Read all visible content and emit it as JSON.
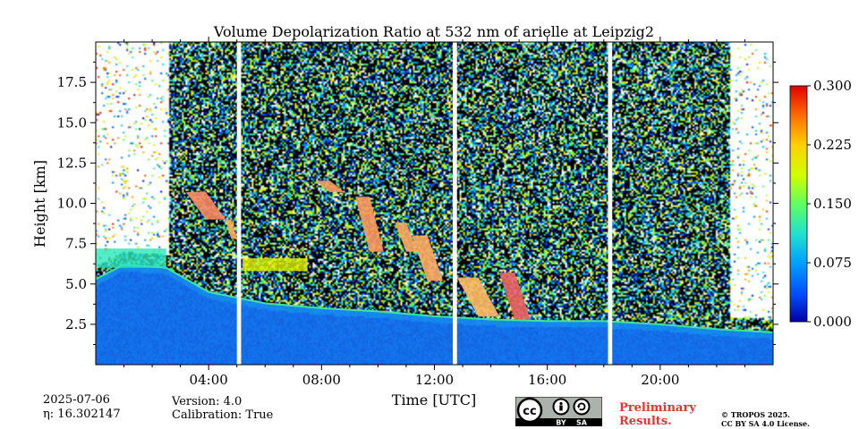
{
  "chart_data": {
    "type": "heatmap",
    "title": "Volume Depolarization Ratio at 532 nm of arielle at Leipzig2",
    "xlabel": "Time [UTC]",
    "ylabel": "Height [km]",
    "xlim_hours": [
      0,
      24
    ],
    "ylim_km": [
      0,
      20
    ],
    "x_ticks": [
      {
        "hour": 4,
        "label": "04:00"
      },
      {
        "hour": 8,
        "label": "08:00"
      },
      {
        "hour": 12,
        "label": "12:00"
      },
      {
        "hour": 16,
        "label": "16:00"
      },
      {
        "hour": 20,
        "label": "20:00"
      }
    ],
    "y_ticks": [
      {
        "km": 2.5,
        "label": "2.5"
      },
      {
        "km": 5.0,
        "label": "5.0"
      },
      {
        "km": 7.5,
        "label": "7.5"
      },
      {
        "km": 10.0,
        "label": "10.0"
      },
      {
        "km": 12.5,
        "label": "12.5"
      },
      {
        "km": 15.0,
        "label": "15.0"
      },
      {
        "km": 17.5,
        "label": "17.5"
      }
    ],
    "colorbar": {
      "range": [
        0,
        0.3
      ],
      "ticks": [
        {
          "value": 0.0,
          "label": "0.000"
        },
        {
          "value": 0.075,
          "label": "0.075"
        },
        {
          "value": 0.15,
          "label": "0.150"
        },
        {
          "value": 0.225,
          "label": "0.225"
        },
        {
          "value": 0.3,
          "label": "0.300"
        }
      ],
      "colormap": [
        "#0000a0",
        "#0050ff",
        "#00a0ff",
        "#20e0d0",
        "#60ff60",
        "#d0ff00",
        "#ffd000",
        "#ff7000",
        "#e00000"
      ]
    },
    "data_gaps_hours": [
      {
        "start": 5.0,
        "end": 5.15
      },
      {
        "start": 12.65,
        "end": 12.8
      },
      {
        "start": 18.15,
        "end": 18.3
      }
    ],
    "boundary_layer_top_km": [
      {
        "hour": 0.0,
        "km": 5.3
      },
      {
        "hour": 1.0,
        "km": 6.2
      },
      {
        "hour": 2.5,
        "km": 6.0
      },
      {
        "hour": 4.0,
        "km": 4.5
      },
      {
        "hour": 6.0,
        "km": 3.8
      },
      {
        "hour": 8.0,
        "km": 3.5
      },
      {
        "hour": 10.0,
        "km": 3.3
      },
      {
        "hour": 12.0,
        "km": 3.0
      },
      {
        "hour": 14.0,
        "km": 2.8
      },
      {
        "hour": 16.0,
        "km": 2.7
      },
      {
        "hour": 18.0,
        "km": 2.7
      },
      {
        "hour": 20.0,
        "km": 2.5
      },
      {
        "hour": 22.0,
        "km": 2.2
      },
      {
        "hour": 24.0,
        "km": 2.0
      }
    ],
    "aerosol_layers": [
      {
        "hour_start": 0.0,
        "hour_end": 2.5,
        "km_start": 6.0,
        "km_end": 7.2,
        "value": 0.12
      },
      {
        "hour_start": 5.2,
        "hour_end": 7.5,
        "km_start": 5.8,
        "km_end": 6.6,
        "value": 0.2
      }
    ],
    "cirrus_features": [
      {
        "hour_start": 3.2,
        "hour_end": 4.6,
        "km_start": 9.0,
        "km_end": 10.7,
        "value": 0.28
      },
      {
        "hour_start": 4.6,
        "hour_end": 5.0,
        "km_start": 7.8,
        "km_end": 9.0,
        "value": 0.26
      },
      {
        "hour_start": 7.8,
        "hour_end": 8.8,
        "km_start": 10.7,
        "km_end": 11.4,
        "value": 0.27
      },
      {
        "hour_start": 9.2,
        "hour_end": 10.2,
        "km_start": 7.0,
        "km_end": 10.4,
        "value": 0.27
      },
      {
        "hour_start": 10.6,
        "hour_end": 11.4,
        "km_start": 7.0,
        "km_end": 8.8,
        "value": 0.26
      },
      {
        "hour_start": 11.2,
        "hour_end": 12.3,
        "km_start": 5.2,
        "km_end": 8.0,
        "value": 0.26
      },
      {
        "hour_start": 12.8,
        "hour_end": 14.3,
        "km_start": 3.0,
        "km_end": 5.4,
        "value": 0.25
      },
      {
        "hour_start": 14.3,
        "hour_end": 15.4,
        "km_start": 2.8,
        "km_end": 5.7,
        "value": 0.3
      }
    ]
  },
  "footer": {
    "date": "2025-07-06",
    "eta": "η: 16.302147",
    "version": "Version: 4.0",
    "calibration": "Calibration: True",
    "preliminary_line1": "Preliminary",
    "preliminary_line2": "Results.",
    "license_line1": "© TROPOS 2025.",
    "license_line2": "CC BY SA 4.0 License.",
    "cc_label": "cc",
    "by_label": "BY",
    "sa_label": "SA"
  }
}
